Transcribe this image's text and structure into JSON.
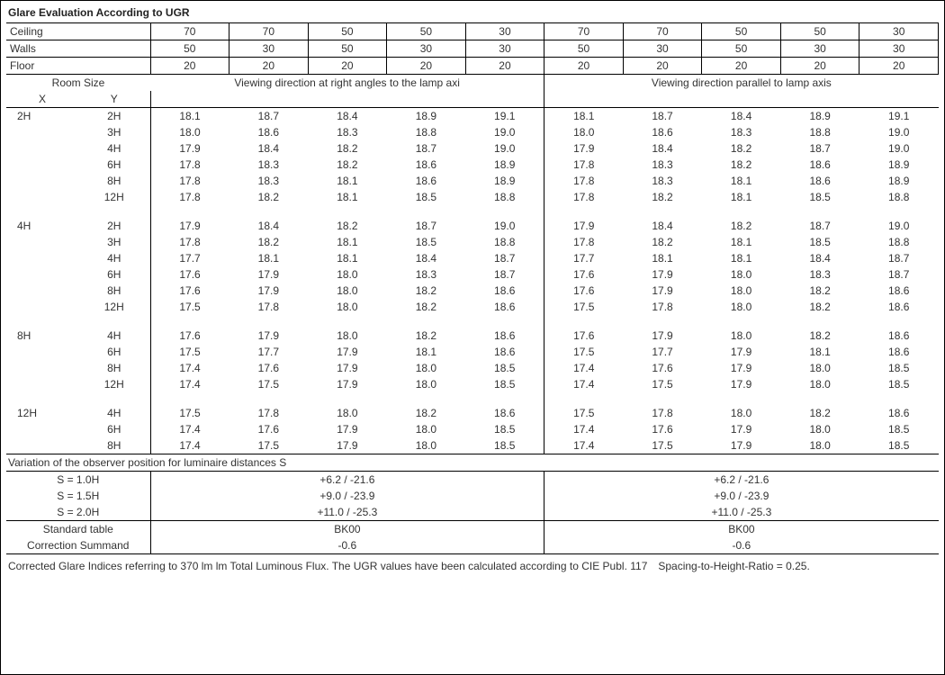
{
  "title": "Glare Evaluation According to UGR",
  "reflectances": {
    "ceiling_label": "Ceiling",
    "walls_label": "Walls",
    "floor_label": "Floor",
    "ceiling": [
      "70",
      "70",
      "50",
      "50",
      "30",
      "70",
      "70",
      "50",
      "50",
      "30"
    ],
    "walls": [
      "50",
      "30",
      "50",
      "30",
      "30",
      "50",
      "30",
      "50",
      "30",
      "30"
    ],
    "floor": [
      "20",
      "20",
      "20",
      "20",
      "20",
      "20",
      "20",
      "20",
      "20",
      "20"
    ]
  },
  "room_size_label": "Room Size",
  "x_label": "X",
  "y_label": "Y",
  "view_left": "Viewing direction at right angles to the lamp axi",
  "view_right": "Viewing direction parallel to lamp axis",
  "groups": [
    {
      "x": "2H",
      "rows": [
        {
          "y": "2H",
          "l": [
            "18.1",
            "18.7",
            "18.4",
            "18.9",
            "19.1"
          ],
          "r": [
            "18.1",
            "18.7",
            "18.4",
            "18.9",
            "19.1"
          ]
        },
        {
          "y": "3H",
          "l": [
            "18.0",
            "18.6",
            "18.3",
            "18.8",
            "19.0"
          ],
          "r": [
            "18.0",
            "18.6",
            "18.3",
            "18.8",
            "19.0"
          ]
        },
        {
          "y": "4H",
          "l": [
            "17.9",
            "18.4",
            "18.2",
            "18.7",
            "19.0"
          ],
          "r": [
            "17.9",
            "18.4",
            "18.2",
            "18.7",
            "19.0"
          ]
        },
        {
          "y": "6H",
          "l": [
            "17.8",
            "18.3",
            "18.2",
            "18.6",
            "18.9"
          ],
          "r": [
            "17.8",
            "18.3",
            "18.2",
            "18.6",
            "18.9"
          ]
        },
        {
          "y": "8H",
          "l": [
            "17.8",
            "18.3",
            "18.1",
            "18.6",
            "18.9"
          ],
          "r": [
            "17.8",
            "18.3",
            "18.1",
            "18.6",
            "18.9"
          ]
        },
        {
          "y": "12H",
          "l": [
            "17.8",
            "18.2",
            "18.1",
            "18.5",
            "18.8"
          ],
          "r": [
            "17.8",
            "18.2",
            "18.1",
            "18.5",
            "18.8"
          ]
        }
      ]
    },
    {
      "x": "4H",
      "rows": [
        {
          "y": "2H",
          "l": [
            "17.9",
            "18.4",
            "18.2",
            "18.7",
            "19.0"
          ],
          "r": [
            "17.9",
            "18.4",
            "18.2",
            "18.7",
            "19.0"
          ]
        },
        {
          "y": "3H",
          "l": [
            "17.8",
            "18.2",
            "18.1",
            "18.5",
            "18.8"
          ],
          "r": [
            "17.8",
            "18.2",
            "18.1",
            "18.5",
            "18.8"
          ]
        },
        {
          "y": "4H",
          "l": [
            "17.7",
            "18.1",
            "18.1",
            "18.4",
            "18.7"
          ],
          "r": [
            "17.7",
            "18.1",
            "18.1",
            "18.4",
            "18.7"
          ]
        },
        {
          "y": "6H",
          "l": [
            "17.6",
            "17.9",
            "18.0",
            "18.3",
            "18.7"
          ],
          "r": [
            "17.6",
            "17.9",
            "18.0",
            "18.3",
            "18.7"
          ]
        },
        {
          "y": "8H",
          "l": [
            "17.6",
            "17.9",
            "18.0",
            "18.2",
            "18.6"
          ],
          "r": [
            "17.6",
            "17.9",
            "18.0",
            "18.2",
            "18.6"
          ]
        },
        {
          "y": "12H",
          "l": [
            "17.5",
            "17.8",
            "18.0",
            "18.2",
            "18.6"
          ],
          "r": [
            "17.5",
            "17.8",
            "18.0",
            "18.2",
            "18.6"
          ]
        }
      ]
    },
    {
      "x": "8H",
      "rows": [
        {
          "y": "4H",
          "l": [
            "17.6",
            "17.9",
            "18.0",
            "18.2",
            "18.6"
          ],
          "r": [
            "17.6",
            "17.9",
            "18.0",
            "18.2",
            "18.6"
          ]
        },
        {
          "y": "6H",
          "l": [
            "17.5",
            "17.7",
            "17.9",
            "18.1",
            "18.6"
          ],
          "r": [
            "17.5",
            "17.7",
            "17.9",
            "18.1",
            "18.6"
          ]
        },
        {
          "y": "8H",
          "l": [
            "17.4",
            "17.6",
            "17.9",
            "18.0",
            "18.5"
          ],
          "r": [
            "17.4",
            "17.6",
            "17.9",
            "18.0",
            "18.5"
          ]
        },
        {
          "y": "12H",
          "l": [
            "17.4",
            "17.5",
            "17.9",
            "18.0",
            "18.5"
          ],
          "r": [
            "17.4",
            "17.5",
            "17.9",
            "18.0",
            "18.5"
          ]
        }
      ]
    },
    {
      "x": "12H",
      "rows": [
        {
          "y": "4H",
          "l": [
            "17.5",
            "17.8",
            "18.0",
            "18.2",
            "18.6"
          ],
          "r": [
            "17.5",
            "17.8",
            "18.0",
            "18.2",
            "18.6"
          ]
        },
        {
          "y": "6H",
          "l": [
            "17.4",
            "17.6",
            "17.9",
            "18.0",
            "18.5"
          ],
          "r": [
            "17.4",
            "17.6",
            "17.9",
            "18.0",
            "18.5"
          ]
        },
        {
          "y": "8H",
          "l": [
            "17.4",
            "17.5",
            "17.9",
            "18.0",
            "18.5"
          ],
          "r": [
            "17.4",
            "17.5",
            "17.9",
            "18.0",
            "18.5"
          ]
        }
      ]
    }
  ],
  "variation": {
    "title": "Variation of the observer position for luminaire distances S",
    "rows": [
      {
        "s": "S = 1.0H",
        "l": "+6.2 / -21.6",
        "r": "+6.2 / -21.6"
      },
      {
        "s": "S = 1.5H",
        "l": "+9.0 / -23.9",
        "r": "+9.0 / -23.9"
      },
      {
        "s": "S = 2.0H",
        "l": "+11.0 / -25.3",
        "r": "+11.0 / -25.3"
      }
    ]
  },
  "standard": {
    "std_lbl": "Standard table",
    "std_l": "BK00",
    "std_r": "BK00",
    "corr_lbl": "Correction Summand",
    "corr_l": "-0.6",
    "corr_r": "-0.6"
  },
  "footer": "Corrected Glare Indices referring to 370 lm lm Total Luminous Flux. The UGR values have been calculated according to CIE Publ. 117 Spacing-to-Height-Ratio = 0.25."
}
